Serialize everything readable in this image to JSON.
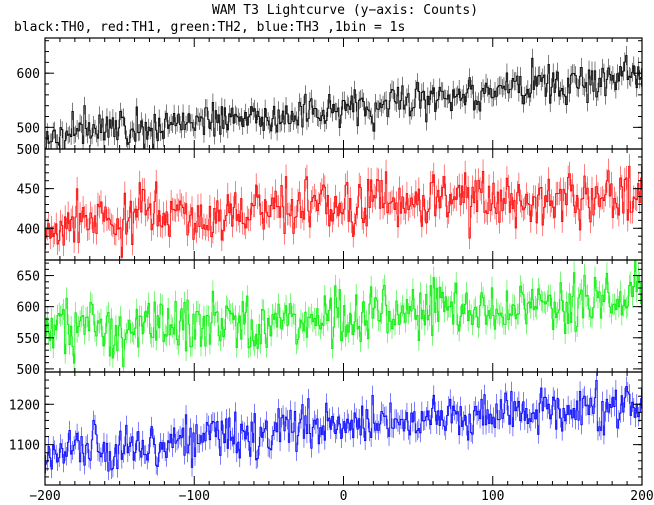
{
  "title": "WAM T3 Lightcurve (y−axis: Counts)",
  "subtitle": "black:TH0, red:TH1, green:TH2, blue:TH3 ,1bin = 1s",
  "chart_data": {
    "type": "line",
    "x_range": [
      -200,
      200
    ],
    "x_ticks": [
      -200,
      -100,
      0,
      100,
      200
    ],
    "x_tick_labels": [
      "−200",
      "−100",
      "0",
      "100",
      "200"
    ],
    "grid": false,
    "panels": [
      {
        "name": "TH0",
        "color": "#000000",
        "ylim": [
          460,
          665
        ],
        "y_ticks": [
          500,
          600
        ],
        "y_tick_labels": [
          "500",
          "600"
        ],
        "trend": [
          [
            -200,
            488
          ],
          [
            -100,
            508
          ],
          [
            0,
            535
          ],
          [
            100,
            565
          ],
          [
            200,
            597
          ]
        ],
        "noise_sd": 17
      },
      {
        "name": "TH1",
        "color": "#ff0000",
        "ylim": [
          360,
          500
        ],
        "y_ticks": [
          400,
          450,
          500
        ],
        "y_tick_labels": [
          "400",
          "450",
          "500"
        ],
        "trend": [
          [
            -200,
            405
          ],
          [
            -100,
            415
          ],
          [
            0,
            427
          ],
          [
            100,
            440
          ],
          [
            200,
            440
          ]
        ],
        "noise_sd": 17
      },
      {
        "name": "TH2",
        "color": "#00ee00",
        "ylim": [
          495,
          675
        ],
        "y_ticks": [
          500,
          550,
          600,
          650
        ],
        "y_tick_labels": [
          "500",
          "550",
          "600",
          "650"
        ],
        "trend": [
          [
            -200,
            565
          ],
          [
            -100,
            568
          ],
          [
            0,
            583
          ],
          [
            100,
            595
          ],
          [
            200,
            615
          ]
        ],
        "noise_sd": 22
      },
      {
        "name": "TH3",
        "color": "#0000ff",
        "ylim": [
          1000,
          1280
        ],
        "y_ticks": [
          1100,
          1200
        ],
        "y_tick_labels": [
          "1100",
          "1200"
        ],
        "trend": [
          [
            -200,
            1075
          ],
          [
            -100,
            1112
          ],
          [
            0,
            1150
          ],
          [
            100,
            1180
          ],
          [
            200,
            1190
          ]
        ],
        "noise_sd": 28
      }
    ]
  }
}
